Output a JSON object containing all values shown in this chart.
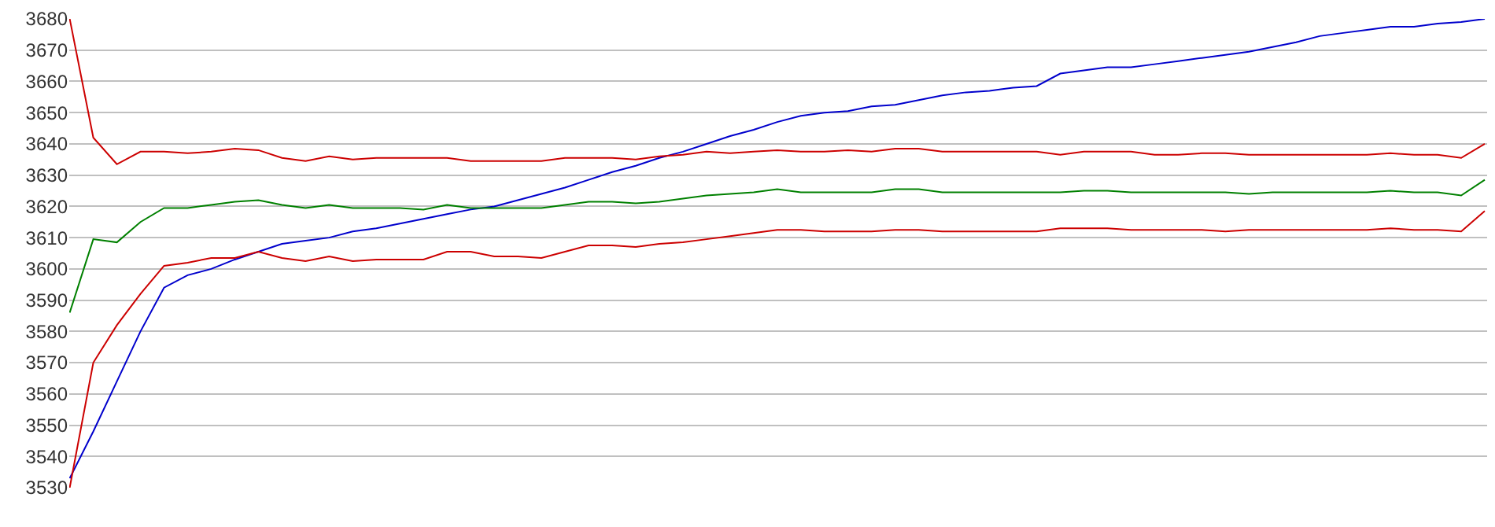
{
  "chart_data": {
    "type": "line",
    "categories": [
      null,
      null,
      null,
      null,
      null,
      null,
      null,
      null,
      null,
      null,
      null,
      null,
      null,
      null,
      null,
      null,
      null,
      null,
      null,
      null,
      null,
      null,
      null,
      null,
      null,
      null,
      null,
      null,
      null,
      null,
      null,
      null,
      null,
      null,
      null,
      null,
      null,
      null,
      null,
      null,
      null,
      null,
      null,
      null,
      null,
      null,
      null,
      null,
      null,
      null,
      null,
      null,
      null,
      null,
      null,
      null,
      null,
      null,
      null,
      null,
      null
    ],
    "series": [
      {
        "color": "#0000cc",
        "values": [
          3533,
          3548,
          3564,
          3580,
          3594,
          3598,
          3600,
          3603,
          3605.5,
          3608,
          3609,
          3610,
          3612,
          3613,
          3614.5,
          3616,
          3617.5,
          3619,
          3620,
          3622,
          3624,
          3626,
          3628.5,
          3631,
          3633,
          3635.5,
          3637.5,
          3640,
          3642.5,
          3644.5,
          3647,
          3649,
          3650,
          3650.5,
          3652,
          3652.5,
          3654,
          3655.5,
          3656.5,
          3657,
          3658,
          3658.5,
          3662.5,
          3663.5,
          3664.5,
          3664.5,
          3665.5,
          3666.5,
          3667.5,
          3668.5,
          3669.5,
          3671,
          3672.5,
          3674.5,
          3675.5,
          3676.5,
          3677.5,
          3677.5,
          3678.5,
          3679,
          3680
        ]
      },
      {
        "color": "#cc0000",
        "values": [
          3680,
          3642,
          3633.5,
          3637.5,
          3637.5,
          3637,
          3637.5,
          3638.5,
          3638,
          3635.5,
          3634.5,
          3636,
          3635,
          3635.5,
          3635.5,
          3635.5,
          3635.5,
          3634.5,
          3634.5,
          3634.5,
          3634.5,
          3635.5,
          3635.5,
          3635.5,
          3635,
          3636,
          3636.5,
          3637.5,
          3637,
          3637.5,
          3638,
          3637.5,
          3637.5,
          3638,
          3637.5,
          3638.5,
          3638.5,
          3637.5,
          3637.5,
          3637.5,
          3637.5,
          3637.5,
          3636.5,
          3637.5,
          3637.5,
          3637.5,
          3636.5,
          3636.5,
          3637,
          3637,
          3636.5,
          3636.5,
          3636.5,
          3636.5,
          3636.5,
          3636.5,
          3637,
          3636.5,
          3636.5,
          3635.5,
          3640
        ]
      },
      {
        "color": "#008000",
        "values": [
          3586,
          3609.5,
          3608.5,
          3615,
          3619.5,
          3619.5,
          3620.5,
          3621.5,
          3622,
          3620.5,
          3619.5,
          3620.5,
          3619.5,
          3619.5,
          3619.5,
          3619,
          3620.5,
          3619.5,
          3619.5,
          3619.5,
          3619.5,
          3620.5,
          3621.5,
          3621.5,
          3621,
          3621.5,
          3622.5,
          3623.5,
          3624,
          3624.5,
          3625.5,
          3624.5,
          3624.5,
          3624.5,
          3624.5,
          3625.5,
          3625.5,
          3624.5,
          3624.5,
          3624.5,
          3624.5,
          3624.5,
          3624.5,
          3625,
          3625,
          3624.5,
          3624.5,
          3624.5,
          3624.5,
          3624.5,
          3624,
          3624.5,
          3624.5,
          3624.5,
          3624.5,
          3624.5,
          3625,
          3624.5,
          3624.5,
          3623.5,
          3628.5
        ]
      },
      {
        "color": "#cc0000",
        "values": [
          3530,
          3570,
          3582,
          3592,
          3601,
          3602,
          3603.5,
          3603.5,
          3605.5,
          3603.5,
          3602.5,
          3604,
          3602.5,
          3603,
          3603,
          3603,
          3605.5,
          3605.5,
          3604,
          3604,
          3603.5,
          3605.5,
          3607.5,
          3607.5,
          3607,
          3608,
          3608.5,
          3609.5,
          3610.5,
          3611.5,
          3612.5,
          3612.5,
          3612,
          3612,
          3612,
          3612.5,
          3612.5,
          3612,
          3612,
          3612,
          3612,
          3612,
          3613,
          3613,
          3613,
          3612.5,
          3612.5,
          3612.5,
          3612.5,
          3612,
          3612.5,
          3612.5,
          3612.5,
          3612.5,
          3612.5,
          3612.5,
          3613,
          3612.5,
          3612.5,
          3612,
          3618.5
        ]
      }
    ],
    "ylim": [
      3530,
      3680
    ],
    "yticks": [
      3530,
      3540,
      3550,
      3560,
      3570,
      3580,
      3590,
      3600,
      3610,
      3620,
      3630,
      3640,
      3650,
      3660,
      3670,
      3680
    ],
    "tick_labels": "y",
    "grid": "y",
    "marker": "none",
    "line_style": "solid"
  }
}
